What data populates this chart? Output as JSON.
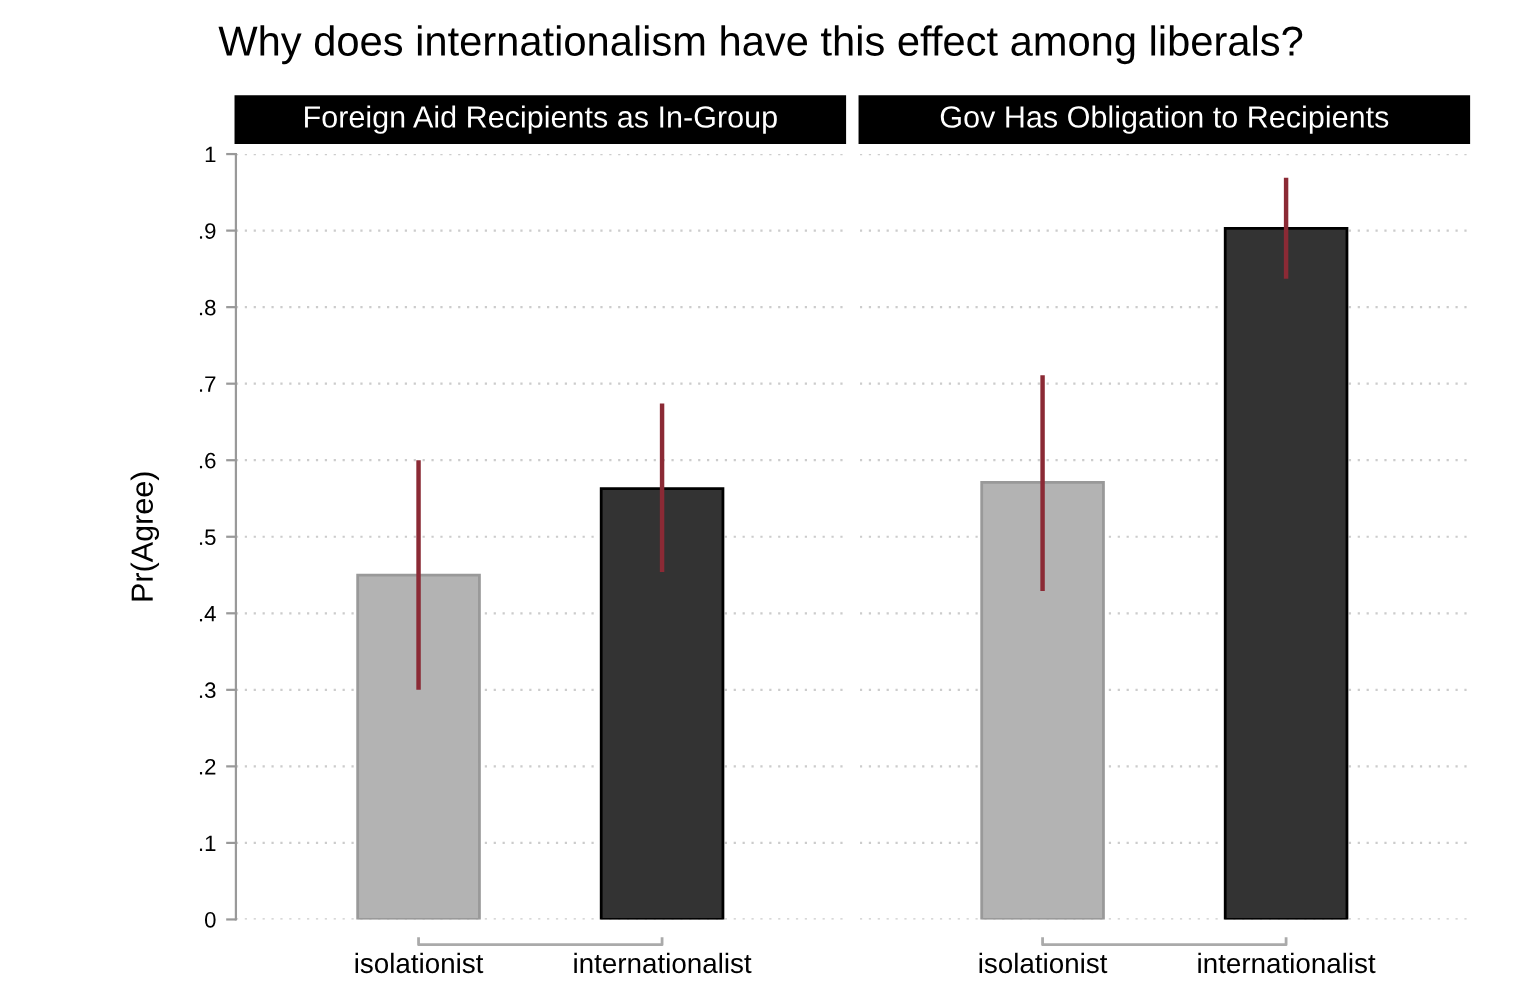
{
  "chart_data": [
    {
      "type": "bar",
      "title": "Why does internationalism have this effect among liberals?",
      "subtitle": "Foreign Aid Recipients as In-Group",
      "ylabel": "Pr(Agree)",
      "categories": [
        "isolationist",
        "internationalist"
      ],
      "values": [
        0.45,
        0.563
      ],
      "colors": [
        "#b3b3b3",
        "#333333"
      ],
      "errors": [
        [
          0.3,
          0.6
        ],
        [
          0.454,
          0.674
        ]
      ],
      "ylim": [
        0,
        1
      ],
      "yticks": [
        0,
        {
          "value": 0.1,
          "label": ".1"
        },
        {
          "value": 0.2,
          "label": ".2"
        },
        {
          "value": 0.3,
          "label": ".3"
        },
        {
          "value": 0.4,
          "label": ".4"
        },
        {
          "value": 0.5,
          "label": ".5"
        },
        {
          "value": 0.6,
          "label": ".6"
        },
        {
          "value": 0.7,
          "label": ".7"
        },
        {
          "value": 0.8,
          "label": ".8"
        },
        {
          "value": 0.9,
          "label": ".9"
        },
        1
      ],
      "grid": "y"
    },
    {
      "type": "bar",
      "subtitle": "Gov Has Obligation to Recipients",
      "categories": [
        "isolationist",
        "internationalist"
      ],
      "values": [
        0.571,
        0.903
      ],
      "colors": [
        "#b3b3b3",
        "#333333"
      ],
      "errors": [
        [
          0.429,
          0.711
        ],
        [
          0.837,
          0.969
        ]
      ],
      "ylim": [
        0,
        1
      ],
      "grid": "y",
      "tick_labels": "x"
    }
  ]
}
